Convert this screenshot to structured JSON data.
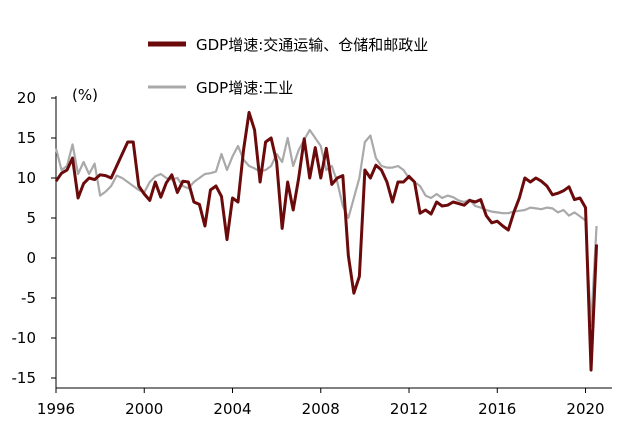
{
  "chart_data": {
    "type": "line",
    "unit_label": "(%)",
    "legend_position": "top",
    "grid": false,
    "x_ticks": [
      "1996",
      "2000",
      "2004",
      "2008",
      "2012",
      "2016",
      "2020"
    ],
    "y_ticks": [
      "20",
      "15",
      "10",
      "5",
      "0",
      "-5",
      "-10",
      "-15"
    ],
    "xlim": [
      1996,
      2021.2
    ],
    "ylim": [
      -15,
      20
    ],
    "series": [
      {
        "name": "GDP增速:交通运输、仓储和邮政业",
        "color": "#6b0a0a",
        "points": [
          [
            1996.0,
            9.6
          ],
          [
            1996.25,
            10.6
          ],
          [
            1996.5,
            11.0
          ],
          [
            1996.75,
            12.5
          ],
          [
            1997.0,
            7.5
          ],
          [
            1997.25,
            9.3
          ],
          [
            1997.5,
            10.0
          ],
          [
            1997.75,
            9.8
          ],
          [
            1998.0,
            10.4
          ],
          [
            1998.25,
            10.3
          ],
          [
            1998.5,
            10.0
          ],
          [
            1998.75,
            11.5
          ],
          [
            1999.0,
            13.0
          ],
          [
            1999.25,
            14.5
          ],
          [
            1999.5,
            14.5
          ],
          [
            1999.75,
            9.0
          ],
          [
            2000.0,
            8.0
          ],
          [
            2000.25,
            7.2
          ],
          [
            2000.5,
            9.5
          ],
          [
            2000.75,
            7.6
          ],
          [
            2001.0,
            9.4
          ],
          [
            2001.25,
            10.4
          ],
          [
            2001.5,
            8.2
          ],
          [
            2001.75,
            9.6
          ],
          [
            2002.0,
            9.5
          ],
          [
            2002.25,
            7.0
          ],
          [
            2002.5,
            6.7
          ],
          [
            2002.75,
            4.0
          ],
          [
            2003.0,
            8.5
          ],
          [
            2003.25,
            9.0
          ],
          [
            2003.5,
            7.7
          ],
          [
            2003.75,
            2.3
          ],
          [
            2004.0,
            7.5
          ],
          [
            2004.25,
            7.0
          ],
          [
            2004.5,
            13.5
          ],
          [
            2004.75,
            18.2
          ],
          [
            2005.0,
            16.0
          ],
          [
            2005.25,
            9.5
          ],
          [
            2005.5,
            14.5
          ],
          [
            2005.75,
            15.0
          ],
          [
            2006.0,
            12.0
          ],
          [
            2006.25,
            3.7
          ],
          [
            2006.5,
            9.5
          ],
          [
            2006.75,
            6.0
          ],
          [
            2007.0,
            10.0
          ],
          [
            2007.25,
            14.9
          ],
          [
            2007.5,
            10.0
          ],
          [
            2007.75,
            13.8
          ],
          [
            2008.0,
            10.0
          ],
          [
            2008.25,
            13.7
          ],
          [
            2008.5,
            9.2
          ],
          [
            2008.75,
            10.0
          ],
          [
            2009.0,
            10.3
          ],
          [
            2009.25,
            0.3
          ],
          [
            2009.5,
            -4.4
          ],
          [
            2009.75,
            -2.3
          ],
          [
            2010.0,
            11.0
          ],
          [
            2010.25,
            10.0
          ],
          [
            2010.5,
            11.6
          ],
          [
            2010.75,
            11.0
          ],
          [
            2011.0,
            9.5
          ],
          [
            2011.25,
            7.0
          ],
          [
            2011.5,
            9.5
          ],
          [
            2011.75,
            9.5
          ],
          [
            2012.0,
            10.2
          ],
          [
            2012.25,
            9.5
          ],
          [
            2012.5,
            5.6
          ],
          [
            2012.75,
            6.0
          ],
          [
            2013.0,
            5.5
          ],
          [
            2013.25,
            7.0
          ],
          [
            2013.5,
            6.5
          ],
          [
            2013.75,
            6.6
          ],
          [
            2014.0,
            7.0
          ],
          [
            2014.25,
            6.8
          ],
          [
            2014.5,
            6.6
          ],
          [
            2014.75,
            7.2
          ],
          [
            2015.0,
            7.0
          ],
          [
            2015.25,
            7.3
          ],
          [
            2015.5,
            5.3
          ],
          [
            2015.75,
            4.4
          ],
          [
            2016.0,
            4.6
          ],
          [
            2016.25,
            4.0
          ],
          [
            2016.5,
            3.5
          ],
          [
            2016.75,
            5.7
          ],
          [
            2017.0,
            7.5
          ],
          [
            2017.25,
            10.0
          ],
          [
            2017.5,
            9.5
          ],
          [
            2017.75,
            10.0
          ],
          [
            2018.0,
            9.6
          ],
          [
            2018.25,
            9.0
          ],
          [
            2018.5,
            7.9
          ],
          [
            2018.75,
            8.1
          ],
          [
            2019.0,
            8.4
          ],
          [
            2019.25,
            8.9
          ],
          [
            2019.5,
            7.3
          ],
          [
            2019.75,
            7.5
          ],
          [
            2020.0,
            6.3
          ],
          [
            2020.25,
            -14.0
          ],
          [
            2020.5,
            1.7
          ]
        ]
      },
      {
        "name": "GDP增速:工业",
        "color": "#a9a9a9",
        "points": [
          [
            1996.0,
            13.7
          ],
          [
            1996.25,
            11.0
          ],
          [
            1996.5,
            11.5
          ],
          [
            1996.75,
            14.2
          ],
          [
            1997.0,
            10.5
          ],
          [
            1997.25,
            12.0
          ],
          [
            1997.5,
            10.5
          ],
          [
            1997.75,
            11.8
          ],
          [
            1998.0,
            7.8
          ],
          [
            1998.25,
            8.3
          ],
          [
            1998.5,
            9.0
          ],
          [
            1998.75,
            10.3
          ],
          [
            1999.0,
            10.0
          ],
          [
            1999.25,
            9.5
          ],
          [
            1999.5,
            9.0
          ],
          [
            1999.75,
            8.5
          ],
          [
            2000.0,
            8.2
          ],
          [
            2000.25,
            9.5
          ],
          [
            2000.5,
            10.2
          ],
          [
            2000.75,
            10.5
          ],
          [
            2001.0,
            10.0
          ],
          [
            2001.25,
            9.8
          ],
          [
            2001.5,
            10.0
          ],
          [
            2001.75,
            9.0
          ],
          [
            2002.0,
            8.7
          ],
          [
            2002.25,
            9.5
          ],
          [
            2002.5,
            10.0
          ],
          [
            2002.75,
            10.5
          ],
          [
            2003.0,
            10.6
          ],
          [
            2003.25,
            10.8
          ],
          [
            2003.5,
            13.0
          ],
          [
            2003.75,
            11.0
          ],
          [
            2004.0,
            12.7
          ],
          [
            2004.25,
            14.0
          ],
          [
            2004.5,
            12.3
          ],
          [
            2004.75,
            11.5
          ],
          [
            2005.0,
            11.2
          ],
          [
            2005.25,
            10.8
          ],
          [
            2005.5,
            11.0
          ],
          [
            2005.75,
            11.5
          ],
          [
            2006.0,
            13.0
          ],
          [
            2006.25,
            12.0
          ],
          [
            2006.5,
            15.0
          ],
          [
            2006.75,
            11.5
          ],
          [
            2007.0,
            13.5
          ],
          [
            2007.25,
            14.8
          ],
          [
            2007.5,
            16.0
          ],
          [
            2007.75,
            15.0
          ],
          [
            2008.0,
            14.0
          ],
          [
            2008.25,
            11.0
          ],
          [
            2008.5,
            11.5
          ],
          [
            2008.75,
            9.5
          ],
          [
            2009.0,
            6.5
          ],
          [
            2009.25,
            5.0
          ],
          [
            2009.5,
            7.5
          ],
          [
            2009.75,
            10.0
          ],
          [
            2010.0,
            14.5
          ],
          [
            2010.25,
            15.3
          ],
          [
            2010.5,
            12.5
          ],
          [
            2010.75,
            11.5
          ],
          [
            2011.0,
            11.3
          ],
          [
            2011.25,
            11.3
          ],
          [
            2011.5,
            11.5
          ],
          [
            2011.75,
            11.0
          ],
          [
            2012.0,
            10.0
          ],
          [
            2012.25,
            9.5
          ],
          [
            2012.5,
            9.0
          ],
          [
            2012.75,
            7.8
          ],
          [
            2013.0,
            7.5
          ],
          [
            2013.25,
            8.0
          ],
          [
            2013.5,
            7.5
          ],
          [
            2013.75,
            7.8
          ],
          [
            2014.0,
            7.6
          ],
          [
            2014.25,
            7.2
          ],
          [
            2014.5,
            7.0
          ],
          [
            2014.75,
            7.3
          ],
          [
            2015.0,
            6.5
          ],
          [
            2015.25,
            6.3
          ],
          [
            2015.5,
            6.0
          ],
          [
            2015.75,
            5.8
          ],
          [
            2016.0,
            5.7
          ],
          [
            2016.25,
            5.6
          ],
          [
            2016.5,
            5.6
          ],
          [
            2016.75,
            5.8
          ],
          [
            2017.0,
            5.9
          ],
          [
            2017.25,
            6.0
          ],
          [
            2017.5,
            6.3
          ],
          [
            2017.75,
            6.2
          ],
          [
            2018.0,
            6.1
          ],
          [
            2018.25,
            6.3
          ],
          [
            2018.5,
            6.2
          ],
          [
            2018.75,
            5.7
          ],
          [
            2019.0,
            6.0
          ],
          [
            2019.25,
            5.3
          ],
          [
            2019.5,
            5.7
          ],
          [
            2019.75,
            5.2
          ],
          [
            2020.0,
            4.7
          ],
          [
            2020.25,
            -8.5
          ],
          [
            2020.5,
            4.0
          ]
        ]
      }
    ]
  }
}
